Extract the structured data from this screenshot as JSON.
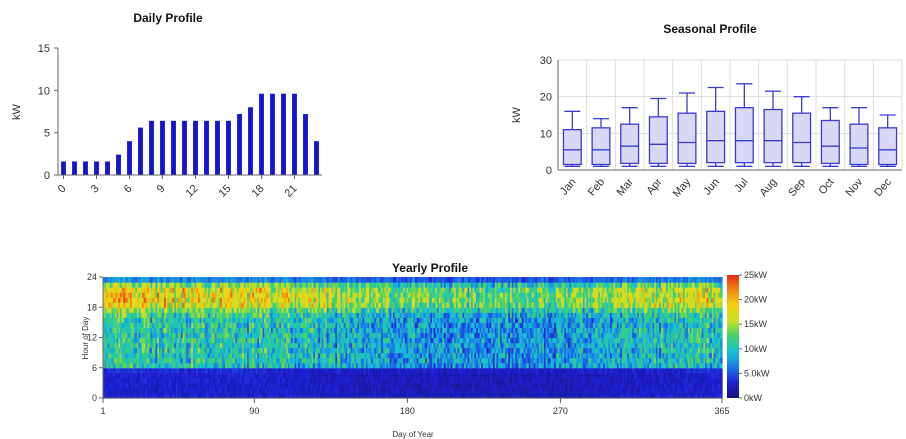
{
  "colors": {
    "bar": "#1414d0",
    "box_fill": "#d8d8f4",
    "box_stroke": "#3c3ccc",
    "axis": "#666666",
    "heatmap_scale": [
      "#15157a",
      "#1f1fd6",
      "#1a78e8",
      "#18c2d2",
      "#3fd06b",
      "#c8e028",
      "#f2d40f",
      "#f28a12",
      "#e82a14"
    ]
  },
  "chart_data": [
    {
      "id": "daily",
      "type": "bar",
      "title": "Daily Profile",
      "xlabel": "",
      "ylabel": "kW",
      "ylim": [
        0,
        15
      ],
      "yticks": [
        "0",
        "5",
        "10",
        "15"
      ],
      "xtick_labels": [
        "0",
        "3",
        "6",
        "9",
        "12",
        "15",
        "18",
        "21"
      ],
      "categories": [
        "0",
        "1",
        "2",
        "3",
        "4",
        "5",
        "6",
        "7",
        "8",
        "9",
        "10",
        "11",
        "12",
        "13",
        "14",
        "15",
        "16",
        "17",
        "18",
        "19",
        "20",
        "21",
        "22",
        "23"
      ],
      "values": [
        1.6,
        1.6,
        1.6,
        1.6,
        1.6,
        2.4,
        4.0,
        5.6,
        6.4,
        6.4,
        6.4,
        6.4,
        6.4,
        6.4,
        6.4,
        6.4,
        7.2,
        8.0,
        9.6,
        9.6,
        9.6,
        9.6,
        7.2,
        4.0
      ]
    },
    {
      "id": "seasonal",
      "type": "box",
      "title": "Seasonal Profile",
      "xlabel": "",
      "ylabel": "kW",
      "ylim": [
        0,
        30
      ],
      "yticks": [
        "0",
        "10",
        "20",
        "30"
      ],
      "grid": true,
      "categories": [
        "Jan",
        "Feb",
        "Mar",
        "Apr",
        "May",
        "Jun",
        "Jul",
        "Aug",
        "Sep",
        "Oct",
        "Nov",
        "Dec"
      ],
      "series": [
        {
          "min": 1.0,
          "q1": 1.5,
          "median": 5.5,
          "q3": 11.0,
          "max": 16.0
        },
        {
          "min": 1.0,
          "q1": 1.5,
          "median": 5.5,
          "q3": 11.5,
          "max": 14.0
        },
        {
          "min": 1.0,
          "q1": 1.8,
          "median": 6.5,
          "q3": 12.5,
          "max": 17.0
        },
        {
          "min": 1.0,
          "q1": 1.8,
          "median": 7.0,
          "q3": 14.5,
          "max": 19.5
        },
        {
          "min": 1.0,
          "q1": 1.8,
          "median": 7.5,
          "q3": 15.5,
          "max": 21.0
        },
        {
          "min": 1.0,
          "q1": 2.0,
          "median": 8.0,
          "q3": 16.0,
          "max": 22.5
        },
        {
          "min": 1.0,
          "q1": 2.0,
          "median": 8.0,
          "q3": 17.0,
          "max": 23.5
        },
        {
          "min": 1.0,
          "q1": 2.0,
          "median": 8.0,
          "q3": 16.5,
          "max": 21.5
        },
        {
          "min": 1.0,
          "q1": 2.0,
          "median": 7.5,
          "q3": 15.5,
          "max": 20.0
        },
        {
          "min": 1.0,
          "q1": 1.8,
          "median": 6.5,
          "q3": 13.5,
          "max": 17.0
        },
        {
          "min": 1.0,
          "q1": 1.5,
          "median": 6.0,
          "q3": 12.5,
          "max": 17.0
        },
        {
          "min": 1.0,
          "q1": 1.5,
          "median": 5.5,
          "q3": 11.5,
          "max": 15.0
        }
      ]
    },
    {
      "id": "yearly",
      "type": "heatmap",
      "title": "Yearly Profile",
      "xlabel": "Day of Year",
      "ylabel": "Hour of Day",
      "xlim": [
        1,
        365
      ],
      "ylim": [
        0,
        24
      ],
      "xticks": [
        "1",
        "90",
        "180",
        "270",
        "365"
      ],
      "yticks": [
        "0",
        "6",
        "12",
        "18",
        "24"
      ],
      "colorbar_ticks": [
        "0kW",
        "5.0kW",
        "10kW",
        "15kW",
        "20kW",
        "25kW"
      ],
      "value_range": [
        0,
        25
      ],
      "hourly_mean_kW": [
        2.5,
        2.5,
        2.5,
        2.5,
        2.5,
        3.0,
        8.5,
        9.0,
        9.0,
        9.0,
        9.0,
        9.0,
        9.0,
        9.0,
        9.0,
        9.0,
        10.0,
        12.0,
        15.0,
        15.5,
        15.5,
        15.0,
        12.0,
        6.0
      ]
    }
  ]
}
